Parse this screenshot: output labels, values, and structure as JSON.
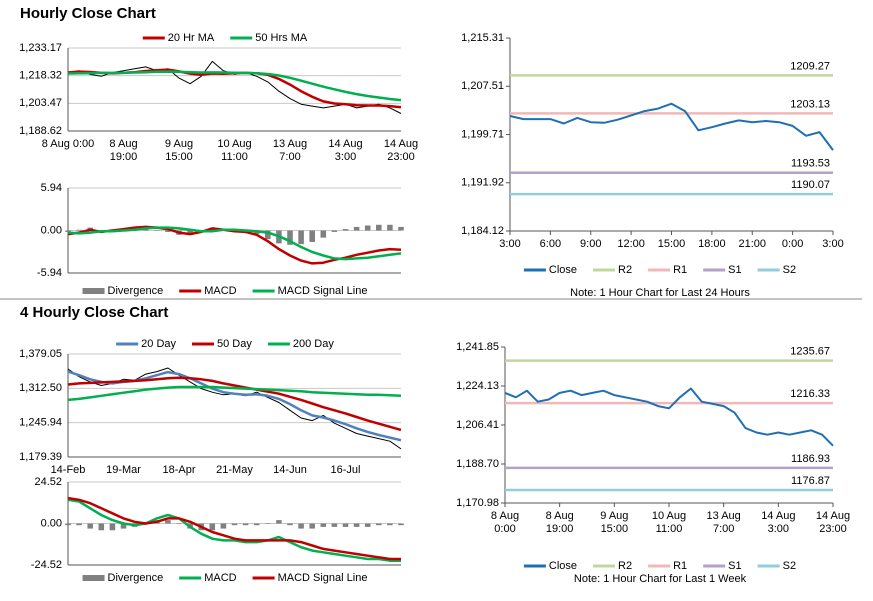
{
  "sections": [
    "Hourly Close Chart",
    "4 Hourly Close Chart"
  ],
  "chart_data": [
    {
      "type": "line",
      "legend": "top",
      "grid": true,
      "categories": [
        "8 Aug 0:00",
        null,
        null,
        null,
        null,
        "8 Aug\n19:00",
        null,
        null,
        null,
        null,
        "9 Aug\n15:00",
        null,
        null,
        null,
        null,
        "10 Aug\n11:00",
        null,
        null,
        null,
        null,
        "13 Aug\n7:00",
        null,
        null,
        null,
        null,
        "14 Aug\n3:00",
        null,
        null,
        null,
        null,
        "14 Aug\n23:00"
      ],
      "ylim": [
        1188.62,
        1233.17
      ],
      "yticks": [
        {
          "value": 1188.62,
          "label": "1,188.62"
        },
        {
          "value": 1203.47,
          "label": "1,203.47"
        },
        {
          "value": 1218.32,
          "label": "1,218.32"
        },
        {
          "value": 1233.17,
          "label": "1,233.17"
        }
      ],
      "series": [
        {
          "color": "#000000",
          "values": [
            1220,
            1221,
            1219,
            1218,
            1220,
            1221,
            1222,
            1223,
            1221,
            1222,
            1217,
            1214,
            1218,
            1226,
            1221,
            1219,
            1220,
            1218,
            1215,
            1210,
            1206,
            1203,
            1202,
            1201,
            1202,
            1203,
            1201,
            1202,
            1203,
            1201,
            1198
          ]
        },
        {
          "name": "20 Hr MA",
          "color": "#c00000",
          "values": [
            1220,
            1220.5,
            1220.3,
            1219.8,
            1219.6,
            1219.8,
            1220.2,
            1220.8,
            1221.2,
            1221.6,
            1220.6,
            1219.4,
            1218.8,
            1219.5,
            1219.4,
            1219.6,
            1219.8,
            1219.6,
            1218.8,
            1216.6,
            1213.5,
            1210,
            1207,
            1204.5,
            1203.4,
            1203,
            1202.4,
            1202.3,
            1202.3,
            1202,
            1201.4
          ]
        },
        {
          "name": "50 Hrs MA",
          "color": "#00b050",
          "values": [
            1219.5,
            1219.6,
            1219.7,
            1219.8,
            1219.8,
            1219.9,
            1220,
            1220.2,
            1220.4,
            1220.5,
            1220.4,
            1220.2,
            1220,
            1220.1,
            1220,
            1219.9,
            1219.8,
            1219.6,
            1219.2,
            1218.4,
            1217.2,
            1215.6,
            1214,
            1212.4,
            1211,
            1209.6,
            1208.4,
            1207.4,
            1206.6,
            1205.8,
            1205.2
          ]
        }
      ]
    },
    {
      "type": "line",
      "legend": "bottom",
      "grid": true,
      "ylim": [
        -5.94,
        5.94
      ],
      "yticks": [
        -5.94,
        {
          "value": 0,
          "label": "0.00"
        },
        5.94
      ],
      "series": [
        {
          "name": "Divergence",
          "type": "bar",
          "color": "#808080",
          "values": [
            -0.2,
            0.1,
            0.4,
            -0.1,
            0.1,
            0.2,
            0.3,
            0.2,
            0,
            -0.2,
            -0.6,
            -0.6,
            -0.1,
            0.4,
            0,
            -0.2,
            -0.2,
            -0.5,
            -1.2,
            -1.8,
            -2,
            -1.9,
            -1.6,
            -1,
            -0.2,
            0.2,
            0.5,
            0.7,
            0.8,
            0.8,
            0.5
          ]
        },
        {
          "name": "MACD",
          "color": "#c00000",
          "values": [
            -0.5,
            -0.3,
            0.1,
            -0.2,
            0,
            0.2,
            0.4,
            0.5,
            0.4,
            0.2,
            -0.3,
            -0.5,
            -0.2,
            0.3,
            0.1,
            -0.1,
            -0.2,
            -0.6,
            -1.5,
            -2.6,
            -3.5,
            -4.2,
            -4.6,
            -4.5,
            -4.1,
            -3.8,
            -3.4,
            -3.1,
            -2.8,
            -2.6,
            -2.7
          ]
        },
        {
          "name": "MACD Signal Line",
          "color": "#00b050",
          "values": [
            -0.3,
            -0.4,
            -0.3,
            -0.1,
            -0.1,
            0,
            0.1,
            0.3,
            0.4,
            0.4,
            0.3,
            0.1,
            -0.1,
            -0.1,
            0.1,
            0.1,
            0,
            -0.1,
            -0.3,
            -0.8,
            -1.5,
            -2.3,
            -3.0,
            -3.5,
            -3.9,
            -4.0,
            -3.9,
            -3.8,
            -3.6,
            -3.4,
            -3.2
          ]
        }
      ]
    },
    {
      "type": "line",
      "legend": "bottom",
      "grid": false,
      "note": "Note: 1 Hour Chart for Last 24 Hours",
      "categories": [
        "3:00",
        null,
        null,
        "6:00",
        null,
        null,
        "9:00",
        null,
        null,
        "12:00",
        null,
        null,
        "15:00",
        null,
        null,
        "18:00",
        null,
        null,
        "21:00",
        null,
        null,
        "0:00",
        null,
        null,
        "3:00"
      ],
      "ylim": [
        1184.12,
        1215.31
      ],
      "yticks": [
        {
          "value": 1184.12,
          "label": "1,184.12"
        },
        {
          "value": 1191.92,
          "label": "1,191.92"
        },
        {
          "value": 1199.71,
          "label": "1,199.71"
        },
        {
          "value": 1207.51,
          "label": "1,207.51"
        },
        {
          "value": 1215.31,
          "label": "1,215.31"
        }
      ],
      "series": [
        {
          "name": "Close",
          "color": "#1f6fb5",
          "values": [
            1202.7,
            1202.2,
            1202.2,
            1202.2,
            1201.5,
            1202.4,
            1201.7,
            1201.6,
            1202.1,
            1202.8,
            1203.5,
            1203.9,
            1204.7,
            1203.5,
            1200.4,
            1200.9,
            1201.5,
            1202.0,
            1201.7,
            1201.9,
            1201.7,
            1201.1,
            1199.5,
            1200.1,
            1197.2
          ]
        },
        {
          "name": "R2",
          "color": "#c3d69b",
          "value": 1209.27
        },
        {
          "name": "R1",
          "color": "#f2b8b8",
          "value": 1203.13
        },
        {
          "name": "S1",
          "color": "#b3a2c7",
          "value": 1193.53
        },
        {
          "name": "S2",
          "color": "#93cddd",
          "value": 1190.07
        }
      ]
    },
    {
      "type": "line",
      "legend": "top",
      "grid": true,
      "categories": [
        "14-Feb",
        null,
        null,
        null,
        null,
        "19-Mar",
        null,
        null,
        null,
        null,
        "18-Apr",
        null,
        null,
        null,
        null,
        "21-May",
        null,
        null,
        null,
        null,
        "14-Jun",
        null,
        null,
        null,
        null,
        "16-Jul",
        null,
        null,
        null,
        null,
        null
      ],
      "ylim": [
        1179.39,
        1379.05
      ],
      "yticks": [
        {
          "value": 1179.39,
          "label": "1,179.39"
        },
        {
          "value": 1245.94,
          "label": "1,245.94"
        },
        {
          "value": 1312.5,
          "label": "1,312.50"
        },
        {
          "value": 1379.05,
          "label": "1,379.05"
        }
      ],
      "series": [
        {
          "color": "#000000",
          "values": [
            1350,
            1335,
            1325,
            1318,
            1322,
            1330,
            1328,
            1340,
            1345,
            1352,
            1338,
            1325,
            1312,
            1305,
            1300,
            1302,
            1298,
            1305,
            1295,
            1285,
            1270,
            1255,
            1250,
            1260,
            1245,
            1235,
            1225,
            1220,
            1215,
            1210,
            1195
          ]
        },
        {
          "name": "20 Day",
          "color": "#4f81bd",
          "values": [
            1345,
            1338,
            1330,
            1325,
            1322,
            1325,
            1327,
            1332,
            1338,
            1344,
            1340,
            1332,
            1322,
            1312,
            1305,
            1302,
            1300,
            1301,
            1298,
            1292,
            1282,
            1270,
            1260,
            1256,
            1250,
            1243,
            1235,
            1228,
            1222,
            1217,
            1212
          ]
        },
        {
          "name": "50 Day",
          "color": "#c00000",
          "values": [
            1320,
            1322,
            1323,
            1324,
            1325,
            1326,
            1327,
            1328,
            1330,
            1332,
            1333,
            1332,
            1330,
            1327,
            1322,
            1318,
            1314,
            1310,
            1306,
            1302,
            1296,
            1290,
            1283,
            1276,
            1270,
            1264,
            1257,
            1250,
            1244,
            1238,
            1232
          ]
        },
        {
          "name": "200 Day",
          "color": "#00b050",
          "values": [
            1290,
            1292,
            1295,
            1298,
            1301,
            1304,
            1307,
            1310,
            1312,
            1314,
            1315,
            1315,
            1315,
            1315,
            1314,
            1313,
            1312,
            1311,
            1310,
            1309,
            1308,
            1307,
            1305,
            1304,
            1303,
            1302,
            1301,
            1300,
            1300,
            1299,
            1298
          ]
        }
      ]
    },
    {
      "type": "line",
      "legend": "bottom",
      "grid": true,
      "ylim": [
        -24.52,
        24.52
      ],
      "yticks": [
        -24.52,
        {
          "value": 0,
          "label": "0.00"
        },
        24.52
      ],
      "series": [
        {
          "name": "Divergence",
          "type": "bar",
          "color": "#808080",
          "values": [
            -1,
            -1,
            -3,
            -4,
            -4,
            -3,
            -2,
            0,
            2,
            2,
            0,
            -3,
            -4,
            -4,
            -3,
            -1,
            -1,
            -1,
            0,
            2,
            -1,
            -3,
            -3,
            -2,
            -2,
            -2,
            -2,
            -2,
            -1,
            -1,
            -1
          ]
        },
        {
          "name": "MACD",
          "color": "#00b050",
          "values": [
            14,
            13,
            9,
            5,
            2,
            0,
            -1,
            0,
            3,
            5,
            3,
            -2,
            -6,
            -9,
            -10,
            -10,
            -11,
            -11,
            -10,
            -8,
            -11,
            -14,
            -16,
            -17,
            -18,
            -19,
            -20,
            -21,
            -21,
            -22,
            -22
          ]
        },
        {
          "name": "MACD Signal Line",
          "color": "#c00000",
          "values": [
            15,
            14,
            12,
            9,
            6,
            3,
            1,
            0,
            1,
            3,
            3,
            1,
            -2,
            -5,
            -7,
            -9,
            -10,
            -10,
            -10,
            -10,
            -10,
            -11,
            -13,
            -15,
            -16,
            -17,
            -18,
            -19,
            -20,
            -21,
            -21
          ]
        }
      ]
    },
    {
      "type": "line",
      "legend": "bottom",
      "grid": false,
      "note": "Note: 1 Hour Chart for Last 1 Week",
      "categories": [
        "8 Aug\n0:00",
        null,
        null,
        null,
        null,
        "8 Aug\n19:00",
        null,
        null,
        null,
        null,
        "9 Aug\n15:00",
        null,
        null,
        null,
        null,
        "10 Aug\n11:00",
        null,
        null,
        null,
        null,
        "13 Aug\n7:00",
        null,
        null,
        null,
        null,
        "14 Aug\n3:00",
        null,
        null,
        null,
        null,
        "14 Aug\n23:00"
      ],
      "ylim": [
        1170.98,
        1241.85
      ],
      "yticks": [
        {
          "value": 1170.98,
          "label": "1,170.98"
        },
        {
          "value": 1188.7,
          "label": "1,188.70"
        },
        {
          "value": 1206.41,
          "label": "1,206.41"
        },
        {
          "value": 1224.13,
          "label": "1,224.13"
        },
        {
          "value": 1241.85,
          "label": "1,241.85"
        }
      ],
      "series": [
        {
          "name": "Close",
          "color": "#1f6fb5",
          "values": [
            1221,
            1219,
            1222,
            1217,
            1218,
            1221,
            1222,
            1220,
            1221,
            1222,
            1220,
            1219,
            1218,
            1217,
            1215,
            1214,
            1219,
            1223,
            1217,
            1216,
            1215,
            1212,
            1205,
            1203,
            1202,
            1203,
            1202,
            1203,
            1204,
            1202,
            1197
          ]
        },
        {
          "name": "R2",
          "color": "#c3d69b",
          "value": 1235.67
        },
        {
          "name": "R1",
          "color": "#f2b8b8",
          "value": 1216.33
        },
        {
          "name": "S1",
          "color": "#b3a2c7",
          "value": 1186.93
        },
        {
          "name": "S2",
          "color": "#93cddd",
          "value": 1176.87
        }
      ]
    }
  ]
}
